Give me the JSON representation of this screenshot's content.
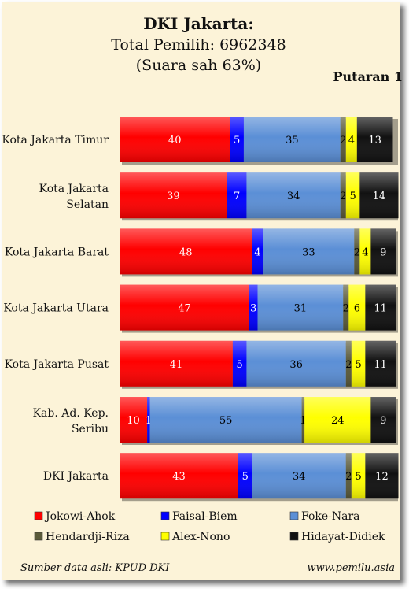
{
  "title": "DKI Jakarta:",
  "subtitle": "Total Pemilih: 6962348",
  "subtitle2": "(Suara sah 63%)",
  "round_label": "Putaran 1",
  "source": "Sumber data asli: KPUD DKI",
  "website": "www.pemilu.asia",
  "chart_data": {
    "type": "bar",
    "orientation": "horizontal",
    "stacked": true,
    "categories": [
      "Kota Jakarta Timur",
      "Kota Jakarta Selatan",
      "Kota Jakarta Barat",
      "Kota Jakarta Utara",
      "Kota Jakarta Pusat",
      "Kab. Ad. Kep. Seribu",
      "DKI Jakarta"
    ],
    "series": [
      {
        "name": "Jokowi-Ahok",
        "color": "#ff0000",
        "values": [
          40,
          39,
          48,
          47,
          41,
          10,
          43
        ]
      },
      {
        "name": "Faisal-Biem",
        "color": "#0000ff",
        "values": [
          5,
          7,
          4,
          3,
          5,
          1,
          5
        ]
      },
      {
        "name": "Foke-Nara",
        "color": "#5b8fd6",
        "values": [
          35,
          34,
          33,
          31,
          36,
          55,
          34
        ]
      },
      {
        "name": "Hendardji-Riza",
        "color": "#5a5a3a",
        "values": [
          2,
          2,
          2,
          2,
          2,
          1,
          2
        ]
      },
      {
        "name": "Alex-Nono",
        "color": "#ffff00",
        "values": [
          4,
          5,
          4,
          6,
          5,
          24,
          5
        ]
      },
      {
        "name": "Hidayat-Didiek",
        "color": "#111111",
        "values": [
          13,
          14,
          9,
          11,
          11,
          9,
          12
        ]
      }
    ],
    "xlim": [
      0,
      100
    ],
    "legend_position": "bottom",
    "grid": false
  }
}
